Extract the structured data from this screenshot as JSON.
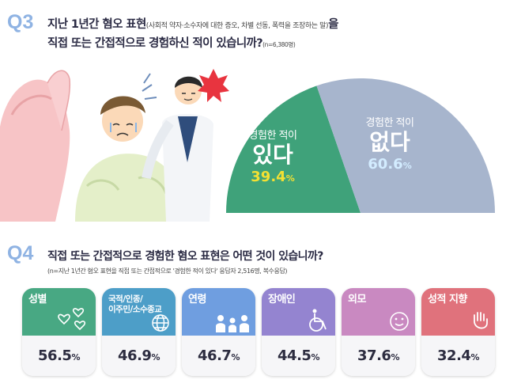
{
  "q3": {
    "number": "Q3",
    "line1": "지난 1년간 혐오 표현",
    "line1_paren": "(사회적 약자·소수자에 대한 증오, 차별 선동, 폭력을 조장하는 말)",
    "line1_end": "을",
    "line2": "직접 또는 간접적으로 경험하신 적이 있습니까?",
    "sample": "(n=6,380명)"
  },
  "q4": {
    "number": "Q4",
    "title": "직접 또는 간접적으로 경험한 혐오 표현은 어떤 것이 있습니까?",
    "note": "(n=지난 1년간 혐오 표현을 직접 또는 간접적으로 '경험한 적이 있다' 응답자 2,516명, 복수응답)"
  },
  "chart_data": [
    {
      "type": "pie",
      "note": "half-donut (semicircle) chart",
      "slices": [
        {
          "label_top": "경험한 적이",
          "label_main": "있다",
          "value": 39.4,
          "value_text": "39.4",
          "unit": "%",
          "color": "#3fa27a",
          "value_color": "#f3e033"
        },
        {
          "label_top": "경험한 적이",
          "label_main": "없다",
          "value": 60.6,
          "value_text": "60.6",
          "unit": "%",
          "color": "#a7b5cd",
          "value_color": "#d3ecff"
        }
      ]
    },
    {
      "type": "bar",
      "note": "rendered as category cards with values",
      "categories": [
        "성별",
        "국적/인종/\n이주민/소수종교",
        "연령",
        "장애인",
        "외모",
        "성적 지향"
      ],
      "values": [
        56.5,
        46.9,
        46.7,
        44.5,
        37.6,
        32.4
      ],
      "value_texts": [
        "56.5",
        "46.9",
        "46.7",
        "44.5",
        "37.6",
        "32.4"
      ],
      "unit": "%",
      "colors": [
        "#48a883",
        "#4d9ec8",
        "#6f9ee0",
        "#9484d0",
        "#c989c1",
        "#e0727c"
      ],
      "icons": [
        "hearts-icon",
        "globe-icon",
        "people-icon",
        "wheelchair-icon",
        "face-icon",
        "hand-icon"
      ]
    }
  ]
}
